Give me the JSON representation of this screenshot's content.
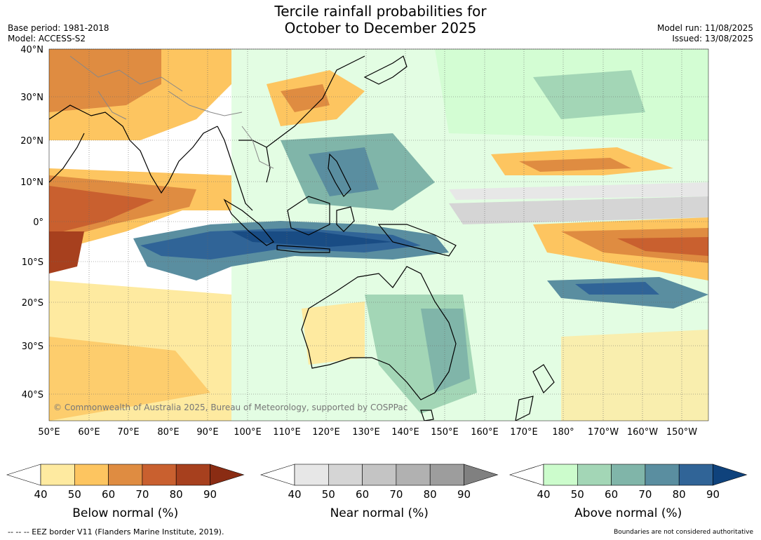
{
  "title_line1": "Tercile rainfall probabilities for",
  "title_line2": "October to December 2025",
  "base_period": "Base period: 1981-2018",
  "model": "Model: ACCESS-S2",
  "model_run": "Model run: 11/08/2025",
  "issued": "Issued: 13/08/2025",
  "copyright": "© Commonwealth of Australia 2025, Bureau of Meteorology, supported by COSPPac",
  "lat_labels": [
    "40°N",
    "30°N",
    "20°N",
    "10°N",
    "0°",
    "10°S",
    "20°S",
    "30°S",
    "40°S"
  ],
  "lon_labels": [
    "50°E",
    "60°E",
    "70°E",
    "80°E",
    "90°E",
    "100°E",
    "110°E",
    "120°E",
    "130°E",
    "140°E",
    "150°E",
    "160°E",
    "170°E",
    "180°",
    "170°W",
    "160°W",
    "150°W"
  ],
  "colorbars": [
    {
      "label": "Below normal (%)",
      "ticks": [
        "40",
        "50",
        "60",
        "70",
        "80",
        "90"
      ],
      "colors": [
        "#ffffff",
        "#feeaa0",
        "#fdc560",
        "#df8c41",
        "#c9602f",
        "#a7401e",
        "#8a2c13"
      ]
    },
    {
      "label": "Near normal (%)",
      "ticks": [
        "40",
        "50",
        "60",
        "70",
        "80",
        "90"
      ],
      "colors": [
        "#ffffff",
        "#e7e7e7",
        "#d5d5d5",
        "#c4c4c4",
        "#b1b1b1",
        "#9d9d9d",
        "#808080"
      ]
    },
    {
      "label": "Above normal (%)",
      "ticks": [
        "40",
        "50",
        "60",
        "70",
        "80",
        "90"
      ],
      "colors": [
        "#ffffff",
        "#ccfccc",
        "#a3d6b6",
        "#80b5a9",
        "#5a8ea0",
        "#306497",
        "#0f427c"
      ]
    }
  ],
  "footer_left": "--  --  -- EEZ border V11 (Flanders Marine Institute, 2019).",
  "footer_right": "Boundaries are not considered authoritative",
  "colors": {
    "ocean_bg": "#ffffff",
    "coast": "#000000",
    "borders": "#888888",
    "grid": "#666666"
  }
}
